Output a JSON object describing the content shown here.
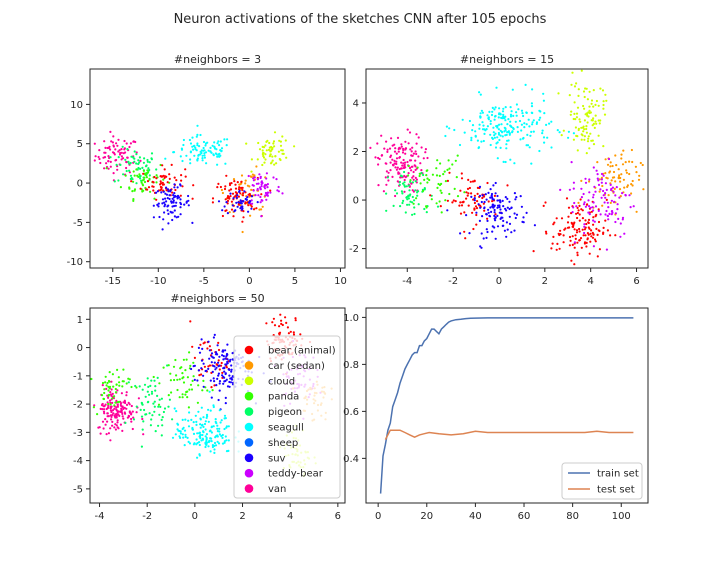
{
  "figure": {
    "suptitle": "Neuron activations of the sketches CNN after 105 epochs"
  },
  "colors": {
    "bear (animal)": "#ff0000",
    "car (sedan)": "#ff9900",
    "cloud": "#ccff00",
    "panda": "#33ff00",
    "pigeon": "#00ff66",
    "seagull": "#00ffff",
    "sheep": "#0066ff",
    "suv": "#1a00ff",
    "teddy-bear": "#cc00ff",
    "van": "#ff0099"
  },
  "chart_data": [
    {
      "type": "scatter",
      "title": "#neighbors = 3",
      "xlim": [
        -17.5,
        10.5
      ],
      "ylim": [
        -10.8,
        14.5
      ],
      "xticks": [
        -15,
        -10,
        -5,
        0,
        5,
        10
      ],
      "yticks": [
        -10,
        -5,
        0,
        5,
        10
      ],
      "clusters": [
        {
          "label": "van",
          "cx": -14.5,
          "cy": 3.5,
          "sx": 1.2,
          "sy": 1.2,
          "n": 80
        },
        {
          "label": "pigeon",
          "cx": -12.5,
          "cy": 2,
          "sx": 1.2,
          "sy": 1.2,
          "n": 60
        },
        {
          "label": "panda",
          "cx": -11.5,
          "cy": 0.5,
          "sx": 1.2,
          "sy": 1.2,
          "n": 50
        },
        {
          "label": "bear (animal)",
          "cx": -9.5,
          "cy": 0,
          "sx": 1.2,
          "sy": 1.0,
          "n": 60
        },
        {
          "label": "suv",
          "cx": -8.5,
          "cy": -2.5,
          "sx": 1.0,
          "sy": 1.0,
          "n": 80
        },
        {
          "label": "seagull",
          "cx": -5,
          "cy": 4,
          "sx": 1.6,
          "sy": 1.0,
          "n": 90
        },
        {
          "label": "cloud",
          "cx": 2.5,
          "cy": 4,
          "sx": 1.0,
          "sy": 1.0,
          "n": 60
        },
        {
          "label": "car (sedan)",
          "cx": 0,
          "cy": -1,
          "sx": 1.3,
          "sy": 1.3,
          "n": 50
        },
        {
          "label": "bear (animal)",
          "cx": -1.5,
          "cy": -2,
          "sx": 1.2,
          "sy": 1.3,
          "n": 80
        },
        {
          "label": "teddy-bear",
          "cx": 1.5,
          "cy": -0.5,
          "sx": 1.0,
          "sy": 1.3,
          "n": 60
        },
        {
          "label": "suv",
          "cx": -1,
          "cy": -2.5,
          "sx": 0.8,
          "sy": 0.8,
          "n": 40
        }
      ]
    },
    {
      "type": "scatter",
      "title": "#neighbors = 15",
      "xlim": [
        -5.8,
        6.5
      ],
      "ylim": [
        -2.8,
        5.4
      ],
      "xticks": [
        -4,
        -2,
        0,
        2,
        4,
        6
      ],
      "yticks": [
        -2,
        0,
        2,
        4
      ],
      "clusters": [
        {
          "label": "van",
          "cx": -4.3,
          "cy": 1.5,
          "sx": 0.5,
          "sy": 0.6,
          "n": 150
        },
        {
          "label": "pigeon",
          "cx": -3.8,
          "cy": 0.2,
          "sx": 0.5,
          "sy": 0.5,
          "n": 60
        },
        {
          "label": "panda",
          "cx": -2.8,
          "cy": 0.8,
          "sx": 0.6,
          "sy": 0.5,
          "n": 50
        },
        {
          "label": "bear (animal)",
          "cx": -1.2,
          "cy": 0,
          "sx": 0.6,
          "sy": 0.5,
          "n": 70
        },
        {
          "label": "suv",
          "cx": 0,
          "cy": -0.5,
          "sx": 0.6,
          "sy": 0.5,
          "n": 120
        },
        {
          "label": "seagull",
          "cx": 0.3,
          "cy": 3,
          "sx": 1.0,
          "sy": 0.6,
          "n": 200
        },
        {
          "label": "cloud",
          "cx": 3.8,
          "cy": 3.5,
          "sx": 0.4,
          "sy": 0.7,
          "n": 100
        },
        {
          "label": "car (sedan)",
          "cx": 5,
          "cy": 0.8,
          "sx": 0.6,
          "sy": 0.6,
          "n": 80
        },
        {
          "label": "bear (animal)",
          "cx": 3.5,
          "cy": -1.2,
          "sx": 0.6,
          "sy": 0.6,
          "n": 130
        },
        {
          "label": "teddy-bear",
          "cx": 4.5,
          "cy": 0,
          "sx": 0.7,
          "sy": 0.8,
          "n": 100
        }
      ]
    },
    {
      "type": "scatter",
      "title": "#neighbors = 50",
      "xlim": [
        -4.4,
        6.3
      ],
      "ylim": [
        -5.5,
        1.4
      ],
      "xticks": [
        -4,
        -2,
        0,
        2,
        4,
        6
      ],
      "yticks": [
        -5,
        -4,
        -3,
        -2,
        -1,
        0,
        1
      ],
      "legend": [
        "bear (animal)",
        "car (sedan)",
        "cloud",
        "panda",
        "pigeon",
        "seagull",
        "sheep",
        "suv",
        "teddy-bear",
        "van"
      ],
      "legend_loc": "center right",
      "clusters": [
        {
          "label": "van",
          "cx": -3.3,
          "cy": -2.2,
          "sx": 0.4,
          "sy": 0.4,
          "n": 150
        },
        {
          "label": "panda",
          "cx": -3.5,
          "cy": -1.4,
          "sx": 0.4,
          "sy": 0.4,
          "n": 50
        },
        {
          "label": "pigeon",
          "cx": -1.8,
          "cy": -2.0,
          "sx": 0.4,
          "sy": 0.5,
          "n": 60
        },
        {
          "label": "panda",
          "cx": -0.5,
          "cy": -1.2,
          "sx": 0.5,
          "sy": 0.5,
          "n": 50
        },
        {
          "label": "bear (animal)",
          "cx": 0.6,
          "cy": -0.5,
          "sx": 0.4,
          "sy": 0.4,
          "n": 40
        },
        {
          "label": "suv",
          "cx": 1.2,
          "cy": -0.7,
          "sx": 0.6,
          "sy": 0.5,
          "n": 150
        },
        {
          "label": "seagull",
          "cx": 0.4,
          "cy": -3.0,
          "sx": 0.6,
          "sy": 0.4,
          "n": 160
        },
        {
          "label": "bear (animal)",
          "cx": 3.8,
          "cy": 0.3,
          "sx": 0.4,
          "sy": 0.4,
          "n": 80
        },
        {
          "label": "teddy-bear",
          "cx": 4.3,
          "cy": -1.0,
          "sx": 0.4,
          "sy": 0.5,
          "n": 60
        },
        {
          "label": "car (sedan)",
          "cx": 5.0,
          "cy": -1.8,
          "sx": 0.3,
          "sy": 0.4,
          "n": 40
        },
        {
          "label": "cloud",
          "cx": 4.3,
          "cy": -3.8,
          "sx": 0.3,
          "sy": 0.5,
          "n": 50
        }
      ]
    },
    {
      "type": "line",
      "title": "",
      "xlim": [
        -5,
        111
      ],
      "ylim": [
        0.21,
        1.04
      ],
      "xticks": [
        0,
        20,
        40,
        60,
        80,
        100
      ],
      "yticks": [
        0.4,
        0.6,
        0.8,
        1.0
      ],
      "yticklabels": [
        "0.4",
        "0.6",
        "0.8",
        "1.0"
      ],
      "legend_loc": "lower right",
      "series": [
        {
          "name": "train set",
          "color": "#4c72b0",
          "x": [
            1,
            2,
            3,
            4,
            5,
            6,
            7,
            8,
            9,
            10,
            11,
            12,
            13,
            14,
            15,
            16,
            17,
            18,
            19,
            20,
            21,
            22,
            23,
            24,
            25,
            26,
            27,
            28,
            29,
            30,
            32,
            34,
            36,
            38,
            40,
            45,
            50,
            60,
            70,
            80,
            90,
            100,
            105
          ],
          "y": [
            0.25,
            0.41,
            0.46,
            0.52,
            0.55,
            0.62,
            0.65,
            0.68,
            0.72,
            0.75,
            0.78,
            0.8,
            0.82,
            0.84,
            0.85,
            0.85,
            0.88,
            0.88,
            0.9,
            0.91,
            0.93,
            0.95,
            0.95,
            0.94,
            0.93,
            0.95,
            0.96,
            0.97,
            0.98,
            0.985,
            0.99,
            0.992,
            0.995,
            0.996,
            0.997,
            0.998,
            0.998,
            0.998,
            0.998,
            0.998,
            0.998,
            0.998,
            0.998
          ]
        },
        {
          "name": "test set",
          "color": "#dd8452",
          "x": [
            3,
            5,
            7,
            9,
            11,
            13,
            15,
            17,
            19,
            21,
            25,
            30,
            35,
            40,
            45,
            50,
            60,
            70,
            80,
            85,
            90,
            95,
            100,
            105
          ],
          "y": [
            0.48,
            0.52,
            0.52,
            0.52,
            0.51,
            0.5,
            0.49,
            0.5,
            0.505,
            0.51,
            0.505,
            0.5,
            0.505,
            0.515,
            0.51,
            0.51,
            0.51,
            0.51,
            0.51,
            0.51,
            0.515,
            0.51,
            0.51,
            0.51
          ]
        }
      ]
    }
  ]
}
